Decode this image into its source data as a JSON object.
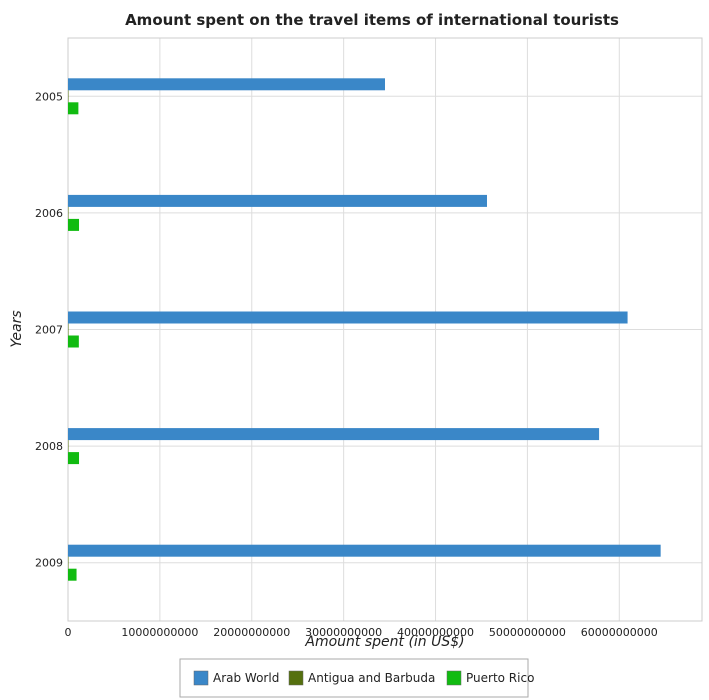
{
  "chart_data": {
    "type": "bar",
    "orientation": "horizontal",
    "title": "Amount spent on the travel items of international tourists",
    "xlabel": "Amount spent (in US$)",
    "ylabel": "Years",
    "categories": [
      "2005",
      "2006",
      "2007",
      "2008",
      "2009"
    ],
    "xlim": [
      0,
      69000000000
    ],
    "xticks": [
      0,
      10000000000,
      20000000000,
      30000000000,
      40000000000,
      50000000000,
      60000000000
    ],
    "xtick_labels": [
      "0",
      "10000000000",
      "20000000000",
      "30000000000",
      "40000000000",
      "50000000000",
      "60000000000"
    ],
    "grid": true,
    "legend_position": "bottom-center",
    "series": [
      {
        "name": "Arab World",
        "color": "#3a87c8",
        "values": [
          34500000000,
          45600000000,
          60900000000,
          57800000000,
          64500000000
        ]
      },
      {
        "name": "Antigua and Barbuda",
        "color": "#55700f",
        "values": [
          40000000,
          42000000,
          45000000,
          47000000,
          48000000
        ]
      },
      {
        "name": "Puerto Rico",
        "color": "#11bb11",
        "values": [
          1130000000,
          1200000000,
          1180000000,
          1200000000,
          930000000
        ]
      }
    ]
  }
}
